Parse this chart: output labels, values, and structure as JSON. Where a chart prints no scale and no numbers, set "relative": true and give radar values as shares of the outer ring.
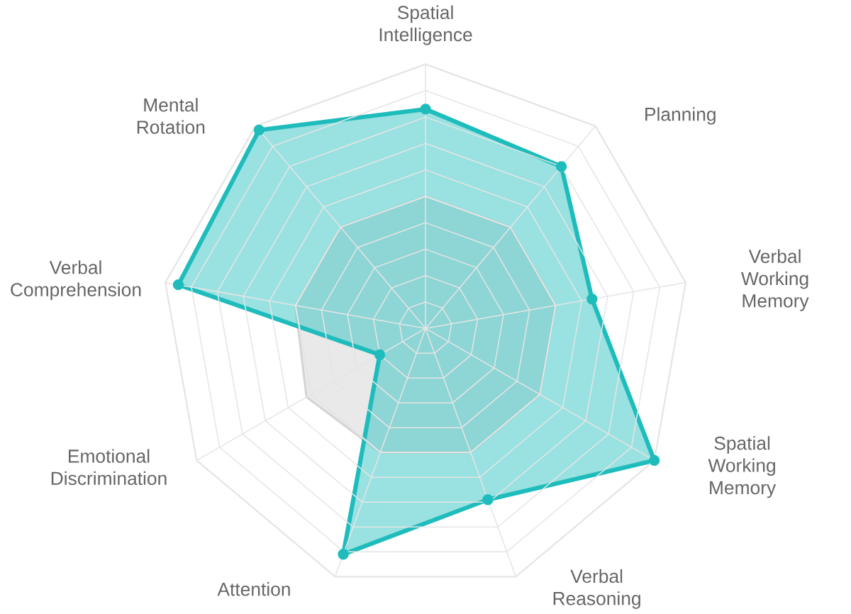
{
  "chart_data": {
    "type": "radar",
    "relative": true,
    "grid": true,
    "line_style": "solid",
    "categories": [
      "Spatial Intelligence",
      "Planning",
      "Verbal Working Memory",
      "Spatial Working Memory",
      "Verbal Reasoning",
      "Attention",
      "Emotional Discrimination",
      "Verbal Comprehension",
      "Mental Rotation"
    ],
    "series": [
      {
        "color": "#d4d4d4",
        "marker": "none",
        "values": [
          0.5,
          0.5,
          0.5,
          0.5,
          0.5,
          0.5,
          0.52,
          0.5,
          0.5
        ]
      },
      {
        "color": "#1fbcbc",
        "marker": "circle",
        "values": [
          0.83,
          0.8,
          0.64,
          1.0,
          0.69,
          0.91,
          0.2,
          0.95,
          0.98
        ]
      }
    ]
  }
}
